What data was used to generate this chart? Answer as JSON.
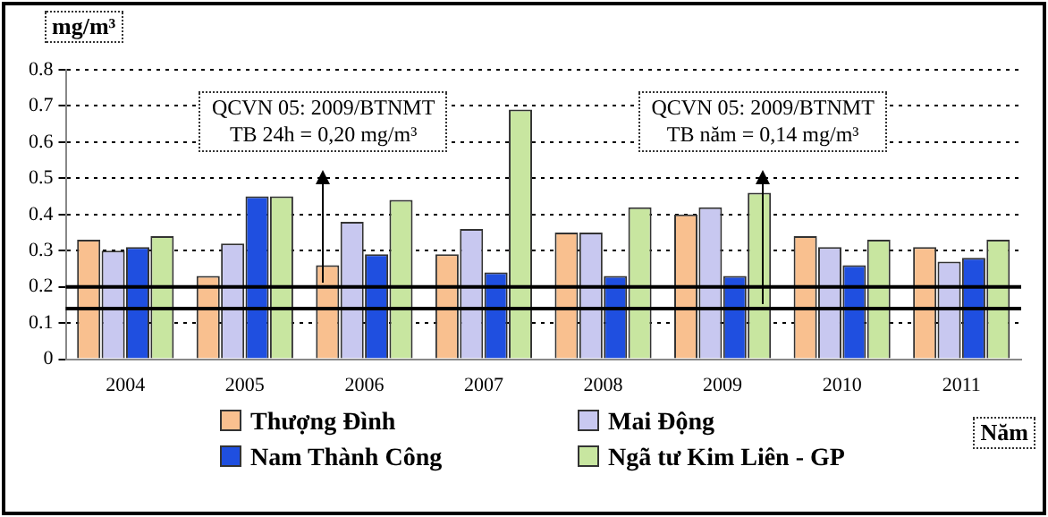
{
  "chart_data": {
    "type": "bar",
    "ylabel": "mg/m³",
    "xlabel": "Năm",
    "categories": [
      "2004",
      "2005",
      "2006",
      "2007",
      "2008",
      "2009",
      "2010",
      "2011"
    ],
    "series": [
      {
        "name": "Thượng Đình",
        "color": "#f9c08f",
        "values": [
          0.33,
          0.23,
          0.26,
          0.29,
          0.35,
          0.4,
          0.34,
          0.31
        ]
      },
      {
        "name": "Mai Động",
        "color": "#c8c8f0",
        "values": [
          0.3,
          0.32,
          0.38,
          0.36,
          0.35,
          0.42,
          0.31,
          0.27
        ]
      },
      {
        "name": "Nam Thành Công",
        "color": "#1f4fe0",
        "values": [
          0.31,
          0.45,
          0.29,
          0.24,
          0.23,
          0.23,
          0.26,
          0.28
        ]
      },
      {
        "name": "Ngã tư Kim Liên - GP",
        "color": "#c8e6a0",
        "values": [
          0.34,
          0.45,
          0.44,
          0.69,
          0.42,
          0.46,
          0.33,
          0.33
        ]
      }
    ],
    "ylim": [
      0,
      0.8
    ],
    "yticks": [
      0,
      0.1,
      0.2,
      0.3,
      0.4,
      0.5,
      0.6,
      0.7,
      0.8
    ],
    "grid": "y",
    "legend": "bottom",
    "ref_lines": [
      {
        "axis": "y",
        "value": 0.2,
        "color": "#000000"
      },
      {
        "axis": "y",
        "value": 0.14,
        "color": "#000000"
      }
    ],
    "annotations": [
      "QCVN 05: 2009/BTNMT\nTB 24h = 0,20 mg/m³",
      "QCVN 05: 2009/BTNMT\nTB năm = 0,14 mg/m³"
    ]
  }
}
